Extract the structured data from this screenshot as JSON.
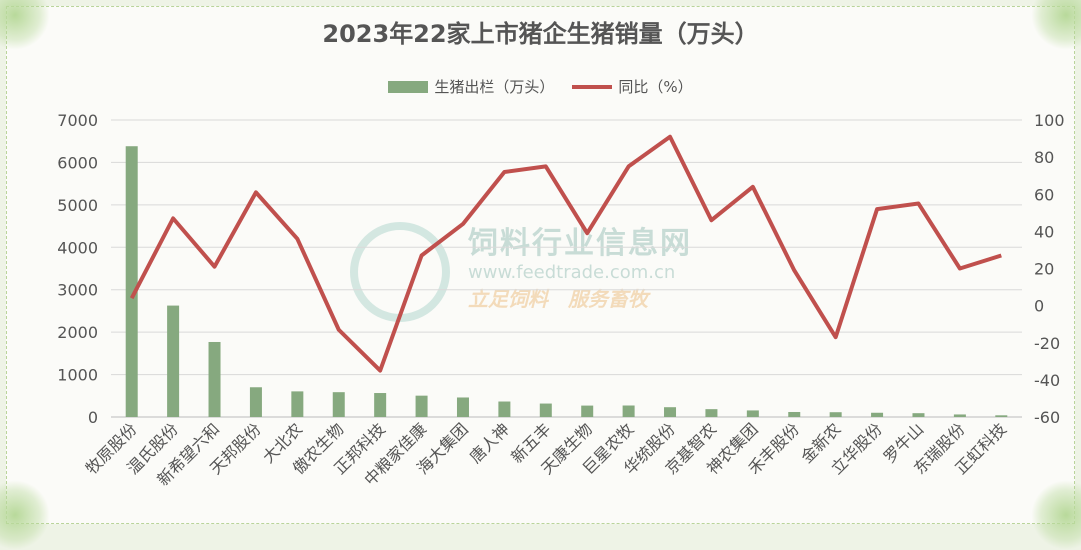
{
  "chart_data": {
    "type": "bar+line",
    "title": "2023年22家上市猪企生猪销量（万头）",
    "categories": [
      "牧原股份",
      "温氏股份",
      "新希望六和",
      "天邦股份",
      "大北农",
      "傲农生物",
      "正邦科技",
      "中粮家佳康",
      "海大集团",
      "唐人神",
      "新五丰",
      "天康生物",
      "巨星农牧",
      "华统股份",
      "京基智农",
      "神农集团",
      "禾丰股份",
      "金新农",
      "立华股份",
      "罗牛山",
      "东瑞股份",
      "正虹科技"
    ],
    "series": [
      {
        "name": "生猪出栏（万头）",
        "type": "bar",
        "axis": "left",
        "color": "#86a97f",
        "values": [
          6382,
          2626,
          1768,
          701,
          604,
          585,
          565,
          503,
          460,
          365,
          317,
          269,
          271,
          231,
          185,
          155,
          118,
          113,
          100,
          90,
          60,
          40
        ]
      },
      {
        "name": "同比（%）",
        "type": "line",
        "axis": "right",
        "color": "#c0504d",
        "values": [
          4,
          47,
          21,
          61,
          36,
          -13,
          -35,
          27,
          44,
          72,
          75,
          39,
          75,
          91,
          46,
          64,
          19,
          -17,
          52,
          55,
          20,
          27
        ]
      }
    ],
    "left_axis": {
      "min": 0,
      "max": 7000,
      "ticks": [
        0,
        1000,
        2000,
        3000,
        4000,
        5000,
        6000,
        7000
      ]
    },
    "right_axis": {
      "min": -60,
      "max": 100,
      "ticks": [
        -60,
        -40,
        -20,
        0,
        20,
        40,
        60,
        80,
        100
      ]
    },
    "grid": true,
    "legend_position": "top"
  },
  "watermark": {
    "name": "饲料行业信息网",
    "url": "www.feedtrade.com.cn",
    "slogan": "立足饲料　服务畜牧"
  }
}
